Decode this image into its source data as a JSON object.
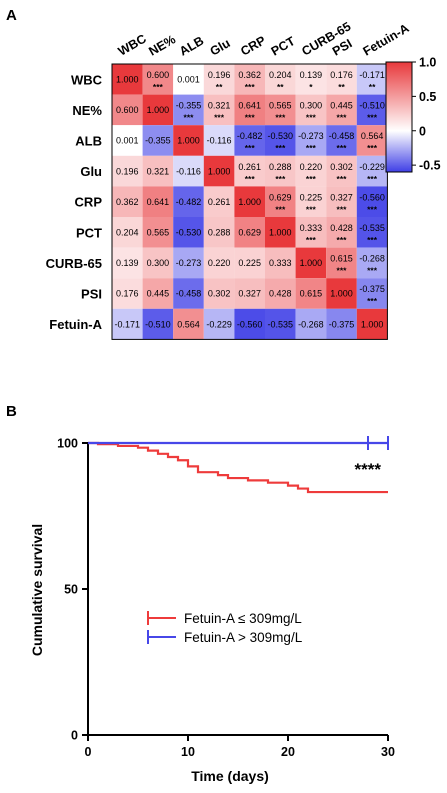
{
  "chart_data": [
    {
      "panel": "A",
      "type": "heatmap",
      "variables": [
        "WBC",
        "NE%",
        "ALB",
        "Glu",
        "CRP",
        "PCT",
        "CURB-65",
        "PSI",
        "Fetuin-A"
      ],
      "values": [
        [
          "1.000",
          "0.600",
          "0.001",
          "0.196",
          "0.362",
          "0.204",
          "0.139",
          "0.176",
          "-0.171"
        ],
        [
          "0.600",
          "1.000",
          "-0.355",
          "0.321",
          "0.641",
          "0.565",
          "0.300",
          "0.445",
          "-0.510"
        ],
        [
          "0.001",
          "-0.355",
          "1.000",
          "-0.116",
          "-0.482",
          "-0.530",
          "-0.273",
          "-0.458",
          "0.564"
        ],
        [
          "0.196",
          "0.321",
          "-0.116",
          "1.000",
          "0.261",
          "0.288",
          "0.220",
          "0.302",
          "-0.229"
        ],
        [
          "0.362",
          "0.641",
          "-0.482",
          "0.261",
          "1.000",
          "0.629",
          "0.225",
          "0.327",
          "-0.560"
        ],
        [
          "0.204",
          "0.565",
          "-0.530",
          "0.288",
          "0.629",
          "1.000",
          "0.333",
          "0.428",
          "-0.535"
        ],
        [
          "0.139",
          "0.300",
          "-0.273",
          "0.220",
          "0.225",
          "0.333",
          "1.000",
          "0.615",
          "-0.268"
        ],
        [
          "0.176",
          "0.445",
          "-0.458",
          "0.302",
          "0.327",
          "0.428",
          "0.615",
          "1.000",
          "-0.375"
        ],
        [
          "-0.171",
          "-0.510",
          "0.564",
          "-0.229",
          "-0.560",
          "-0.535",
          "-0.268",
          "-0.375",
          "1.000"
        ]
      ],
      "significance": [
        [
          "",
          "***",
          "",
          "**",
          "***",
          "**",
          "*",
          "**",
          "**"
        ],
        [
          "",
          "",
          "***",
          "***",
          "***",
          "***",
          "***",
          "***",
          "***"
        ],
        [
          "",
          "",
          "",
          "",
          "***",
          "***",
          "***",
          "***",
          "***"
        ],
        [
          "",
          "",
          "",
          "",
          "***",
          "***",
          "***",
          "***",
          "***"
        ],
        [
          "",
          "",
          "",
          "",
          "",
          "***",
          "***",
          "***",
          "***"
        ],
        [
          "",
          "",
          "",
          "",
          "",
          "",
          "***",
          "***",
          "***"
        ],
        [
          "",
          "",
          "",
          "",
          "",
          "",
          "",
          "***",
          "***"
        ],
        [
          "",
          "",
          "",
          "",
          "",
          "",
          "",
          "",
          "***"
        ],
        [
          "",
          "",
          "",
          "",
          "",
          "",
          "",
          "",
          ""
        ]
      ],
      "colorbar": {
        "ticks": [
          "1.0",
          "0.5",
          "0",
          "-0.5"
        ],
        "range": [
          -0.6,
          1.0
        ],
        "high_color": "#E8393C",
        "mid_color": "#FFFFFF",
        "low_color": "#3F3FE6"
      }
    },
    {
      "panel": "B",
      "type": "line",
      "xlabel": "Time (days)",
      "ylabel": "Cumulative survival",
      "xlim": [
        0,
        30
      ],
      "ylim": [
        0,
        100
      ],
      "xticks": [
        "0",
        "10",
        "20",
        "30"
      ],
      "yticks": [
        "0",
        "50",
        "100"
      ],
      "significance_label": "****",
      "series": [
        {
          "name": "Fetuin-A ≤ 309mg/L",
          "color": "#EE3B3B",
          "steps": [
            [
              0,
              100
            ],
            [
              1,
              99.6
            ],
            [
              3,
              99.0
            ],
            [
              5,
              98.4
            ],
            [
              6,
              97.4
            ],
            [
              7,
              96.3
            ],
            [
              8,
              95.2
            ],
            [
              9,
              94.1
            ],
            [
              10,
              92.0
            ],
            [
              11,
              90.0
            ],
            [
              13,
              89.0
            ],
            [
              14,
              88.0
            ],
            [
              16,
              87.2
            ],
            [
              18,
              86.4
            ],
            [
              20,
              85.4
            ],
            [
              21,
              84.4
            ],
            [
              22,
              83.2
            ],
            [
              30,
              83.2
            ]
          ],
          "censored_x": []
        },
        {
          "name": "Fetuin-A > 309mg/L",
          "color": "#4747E8",
          "steps": [
            [
              0,
              100
            ],
            [
              30,
              100
            ]
          ],
          "censored_x": [
            28,
            30
          ]
        }
      ]
    }
  ]
}
